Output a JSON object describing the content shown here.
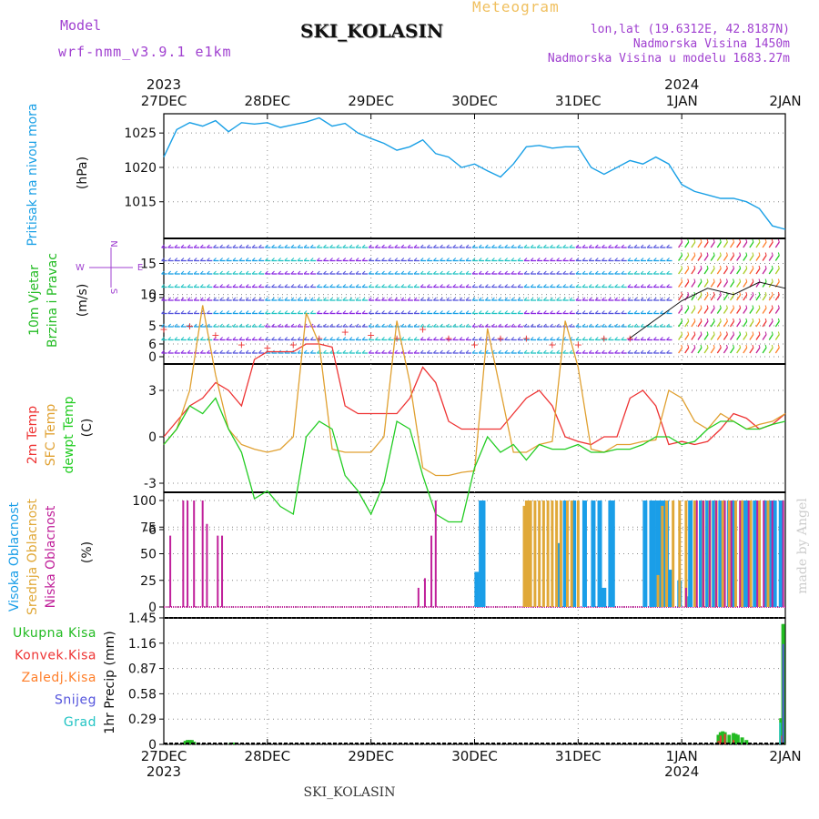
{
  "header": {
    "model_label": "Model",
    "model_name": "wrf-nmm_v3.9.1 e1km",
    "title": "SKI_KOLASIN",
    "meteogram_label": "Meteogram",
    "lonlat": "lon,lat (19.6312E, 42.8187N)",
    "altitude": "Nadmorska Visina 1450m",
    "model_altitude": "Nadmorska Visina u modelu 1683.27m",
    "footer_station": "SKI_KOLASIN",
    "credit": "made by Angel"
  },
  "colors": {
    "pressure": "#1aa0e6",
    "temp2m": "#ee3333",
    "sfc_temp": "#e0a030",
    "dewpt": "#22cc22",
    "high_cloud": "#1a9ee8",
    "mid_cloud": "#e0a838",
    "low_cloud": "#c0209a",
    "total_precip": "#22bb22",
    "conv_precip": "#ee3333",
    "frozen": "#ff7f2a",
    "snow": "#5555dd",
    "hail": "#22c4c4",
    "purple_text": "#a040d0",
    "wind_black": "#111111"
  },
  "chart_data": [
    {
      "type": "line",
      "title": "",
      "ylabel": "(hPa)",
      "side_label": "Pritisak na nivou mora",
      "ylim": [
        1010.6,
        1027.8
      ],
      "yticks": [
        "1015",
        "1020",
        "1025"
      ],
      "x_days": [
        "27DEC",
        "28DEC",
        "29DEC",
        "30DEC",
        "31DEC",
        "1JAN",
        "2JAN"
      ],
      "x_years": {
        "27DEC": "2023",
        "1JAN": "2024"
      },
      "series": [
        {
          "name": "",
          "x_hours": [
            0,
            3,
            6,
            9,
            12,
            15,
            18,
            21,
            24,
            27,
            30,
            33,
            36,
            39,
            42,
            45,
            48,
            51,
            54,
            57,
            60,
            63,
            66,
            69,
            72,
            75,
            78,
            81,
            84,
            87,
            90,
            93,
            96,
            99,
            102,
            105,
            108,
            111,
            114,
            117,
            120,
            123,
            126,
            129,
            132,
            135,
            138,
            141,
            144
          ],
          "values": [
            1021.5,
            1025.5,
            1026.5,
            1026.0,
            1026.8,
            1025.2,
            1026.5,
            1026.3,
            1026.5,
            1025.8,
            1026.2,
            1026.6,
            1027.2,
            1026.0,
            1026.4,
            1025.0,
            1024.2,
            1023.5,
            1022.5,
            1023.0,
            1024.0,
            1022.0,
            1021.5,
            1020.0,
            1020.5,
            1019.5,
            1018.6,
            1020.5,
            1023.0,
            1023.2,
            1022.8,
            1023.0,
            1023.0,
            1020.0,
            1019.0,
            1020.0,
            1021.0,
            1020.5,
            1021.5,
            1020.5,
            1017.5,
            1016.5,
            1016.0,
            1015.5,
            1015.5,
            1015.0,
            1014.0,
            1011.5,
            1011.0
          ]
        }
      ]
    },
    {
      "type": "line",
      "title": "",
      "ylabel": "(m/s)",
      "side_label_1": "10m Vjetar",
      "side_label_2": "Brzina i Pravac",
      "compass": {
        "n": "N",
        "w": "W",
        "e": "E",
        "s": "S"
      },
      "ylim": [
        -0.8,
        19
      ],
      "yticks": [
        "0",
        "5",
        "10",
        "15"
      ],
      "series": [
        {
          "name": "wind speed",
          "x_hours": [
            0,
            6,
            12,
            18,
            24,
            30,
            36,
            42,
            48,
            54,
            60,
            66,
            72,
            78,
            84,
            90,
            96,
            102,
            108,
            114,
            120,
            126,
            132,
            138,
            144
          ],
          "values": [
            4.5,
            5.0,
            3.5,
            2.0,
            1.5,
            2.0,
            3.0,
            4.0,
            3.5,
            3.0,
            4.5,
            3.0,
            2.0,
            3.0,
            3.0,
            2.0,
            2.0,
            3.0,
            3.0,
            6.0,
            9.0,
            11.0,
            10.0,
            12.0,
            11.0
          ]
        }
      ]
    },
    {
      "type": "line",
      "title": "",
      "ylabel": "(C)",
      "side_label_1": "2m Temp",
      "side_label_2": "SFC Temp",
      "side_label_3": "dewpt Temp",
      "ylim": [
        -7,
        9
      ],
      "yticks": [
        "-6",
        "-3",
        "0",
        "3",
        "6",
        "9"
      ],
      "series": [
        {
          "name": "2m Temp",
          "x_hours": [
            0,
            3,
            6,
            9,
            12,
            15,
            18,
            21,
            24,
            27,
            30,
            33,
            36,
            39,
            42,
            45,
            48,
            51,
            54,
            57,
            60,
            63,
            66,
            69,
            72,
            75,
            78,
            81,
            84,
            87,
            90,
            93,
            96,
            99,
            102,
            105,
            108,
            111,
            114,
            117,
            120,
            123,
            126,
            129,
            132,
            135,
            138,
            141,
            144
          ],
          "values": [
            0.0,
            1.0,
            2.0,
            2.5,
            3.5,
            3.0,
            2.0,
            5.0,
            5.5,
            5.5,
            5.5,
            6.0,
            6.0,
            5.8,
            2.0,
            1.5,
            1.5,
            1.5,
            1.5,
            2.5,
            4.5,
            3.5,
            1.0,
            0.5,
            0.5,
            0.5,
            0.5,
            1.5,
            2.5,
            3.0,
            2.0,
            0.0,
            -0.3,
            -0.5,
            0.0,
            0.0,
            2.5,
            3.0,
            2.0,
            -0.5,
            -0.3,
            -0.5,
            -0.3,
            0.5,
            1.5,
            1.2,
            0.5,
            0.8,
            1.5
          ]
        },
        {
          "name": "SFC Temp",
          "x_hours": [
            0,
            3,
            6,
            9,
            12,
            15,
            18,
            21,
            24,
            27,
            30,
            33,
            36,
            39,
            42,
            45,
            48,
            51,
            54,
            57,
            60,
            63,
            66,
            69,
            72,
            75,
            78,
            81,
            84,
            87,
            90,
            93,
            96,
            99,
            102,
            105,
            108,
            111,
            114,
            117,
            120,
            123,
            126,
            129,
            132,
            135,
            138,
            141,
            144
          ],
          "values": [
            -0.5,
            0.5,
            3.0,
            8.5,
            4.0,
            0.5,
            -0.5,
            -0.8,
            -1.0,
            -0.8,
            0.0,
            8.0,
            6.0,
            -0.8,
            -1.0,
            -1.0,
            -1.0,
            0.0,
            7.5,
            3.5,
            -2.0,
            -2.5,
            -2.5,
            -2.3,
            -2.2,
            7.0,
            3.0,
            -1.0,
            -1.0,
            -0.5,
            -0.3,
            7.5,
            4.5,
            -0.8,
            -1.0,
            -0.5,
            -0.5,
            -0.3,
            -0.2,
            3.0,
            2.5,
            1.0,
            0.5,
            1.5,
            1.0,
            0.5,
            0.8,
            1.0,
            1.5
          ]
        },
        {
          "name": "dewpt Temp",
          "x_hours": [
            0,
            3,
            6,
            9,
            12,
            15,
            18,
            21,
            24,
            27,
            30,
            33,
            36,
            39,
            42,
            45,
            48,
            51,
            54,
            57,
            60,
            63,
            66,
            69,
            72,
            75,
            78,
            81,
            84,
            87,
            90,
            93,
            96,
            99,
            102,
            105,
            108,
            111,
            114,
            117,
            120,
            123,
            126,
            129,
            132,
            135,
            138,
            141,
            144
          ],
          "values": [
            -0.5,
            0.5,
            2.0,
            1.5,
            2.5,
            0.5,
            -1.0,
            -4.0,
            -3.5,
            -4.5,
            -5.0,
            0.0,
            1.0,
            0.5,
            -2.5,
            -3.5,
            -5.0,
            -3.0,
            1.0,
            0.5,
            -2.5,
            -5.0,
            -5.5,
            -5.5,
            -2.0,
            0.0,
            -1.0,
            -0.5,
            -1.5,
            -0.5,
            -0.8,
            -0.8,
            -0.5,
            -1.0,
            -1.0,
            -0.8,
            -0.8,
            -0.5,
            0.0,
            0.0,
            -0.5,
            -0.3,
            0.5,
            1.0,
            1.0,
            0.5,
            0.5,
            0.8,
            1.0
          ]
        }
      ]
    },
    {
      "type": "bar",
      "title": "",
      "ylabel": "(%)",
      "side_label_1": "Visoka Oblacnost",
      "side_label_2": "Srednja Oblacnost",
      "side_label_3": "Niska Oblacnost",
      "ylim": [
        0,
        100
      ],
      "yticks": [
        "0",
        "25",
        "50",
        "75",
        "100"
      ],
      "series": [
        {
          "name": "Visoka Oblacnost",
          "x_hours": [
            72.5,
            73.5,
            74.0,
            91.5,
            93.0,
            95.0,
            97.5,
            99.5,
            101.0,
            102.0,
            103.5,
            104.0,
            111.5,
            113.0,
            113.5,
            114.5,
            115.0,
            116.0,
            116.5,
            117.5,
            119.5,
            121.5,
            122.0,
            124.5,
            126.0,
            127.5,
            129.0,
            131.0,
            132.0,
            134.0,
            135.0,
            137.0,
            139.5,
            140.5,
            141.5,
            143.0
          ],
          "values": [
            33,
            100,
            100,
            60,
            100,
            100,
            100,
            100,
            100,
            18,
            100,
            100,
            100,
            100,
            100,
            100,
            100,
            100,
            100,
            35,
            25,
            10,
            100,
            100,
            100,
            100,
            100,
            100,
            100,
            100,
            100,
            100,
            100,
            100,
            100,
            100
          ]
        },
        {
          "name": "Srednja Oblacnost",
          "x_hours": [
            83.5,
            84.0,
            84.5,
            85.0,
            86.0,
            87.0,
            88.0,
            89.0,
            90.0,
            91.0,
            92.0,
            93.5,
            94.5,
            96.0,
            114.5,
            115.5,
            116.5,
            118.0,
            119.5,
            121.0,
            123.0,
            125.0,
            126.5,
            128.0,
            129.5,
            131.0,
            132.5,
            134.0,
            136.0,
            138.0,
            140.0
          ],
          "values": [
            95,
            100,
            100,
            100,
            100,
            100,
            100,
            100,
            100,
            100,
            100,
            100,
            100,
            100,
            30,
            95,
            100,
            100,
            100,
            100,
            100,
            100,
            100,
            100,
            100,
            100,
            100,
            100,
            100,
            100,
            100
          ]
        },
        {
          "name": "Niska Oblacnost",
          "x_hours": [
            1.5,
            4.5,
            5.5,
            7.0,
            9.0,
            10.0,
            12.5,
            13.5,
            59.0,
            60.5,
            62.0,
            63.0,
            121.0,
            123.5,
            125.0,
            126.5,
            128.0,
            130.0,
            131.5,
            133.5,
            135.5,
            137.5,
            139.0,
            141.0,
            143.5
          ],
          "values": [
            67,
            100,
            100,
            100,
            100,
            78,
            67,
            67,
            18,
            27,
            67,
            100,
            18,
            100,
            100,
            100,
            100,
            100,
            100,
            100,
            100,
            100,
            100,
            100,
            100
          ]
        }
      ]
    },
    {
      "type": "bar",
      "title": "",
      "ylabel": "1hr Precip (mm)",
      "legend": [
        "Ukupna Kisa",
        "Konvek.Kisa",
        "Zaledj.Kisa",
        "Snijeg",
        "Grad"
      ],
      "ylim": [
        0,
        1.45
      ],
      "yticks": [
        "0",
        "0.29",
        "0.58",
        "0.87",
        "1.16",
        "1.45"
      ],
      "series": [
        {
          "name": "Ukupna Kisa",
          "x_hours": [
            5.0,
            5.5,
            6.0,
            6.5,
            7.0,
            15.5,
            16.0,
            128.5,
            129.0,
            129.5,
            130.0,
            131.0,
            132.0,
            132.5,
            133.0,
            134.0,
            135.0,
            143.0,
            143.5
          ],
          "values": [
            0.04,
            0.05,
            0.05,
            0.05,
            0.03,
            0.02,
            0.02,
            0.11,
            0.14,
            0.15,
            0.14,
            0.11,
            0.13,
            0.12,
            0.11,
            0.08,
            0.05,
            0.3,
            1.38
          ]
        },
        {
          "name": "Konvek.Kisa",
          "x_hours": [
            128.5,
            129.0,
            130.0,
            132.0,
            143.0
          ],
          "values": [
            0.04,
            0.1,
            0.12,
            0.05,
            0.1
          ]
        },
        {
          "name": "Snijeg",
          "x_hours": [
            143.5
          ],
          "values": [
            1.15
          ]
        },
        {
          "name": "Grad",
          "x_hours": [
            142.8
          ],
          "values": [
            0.25
          ]
        }
      ]
    }
  ]
}
